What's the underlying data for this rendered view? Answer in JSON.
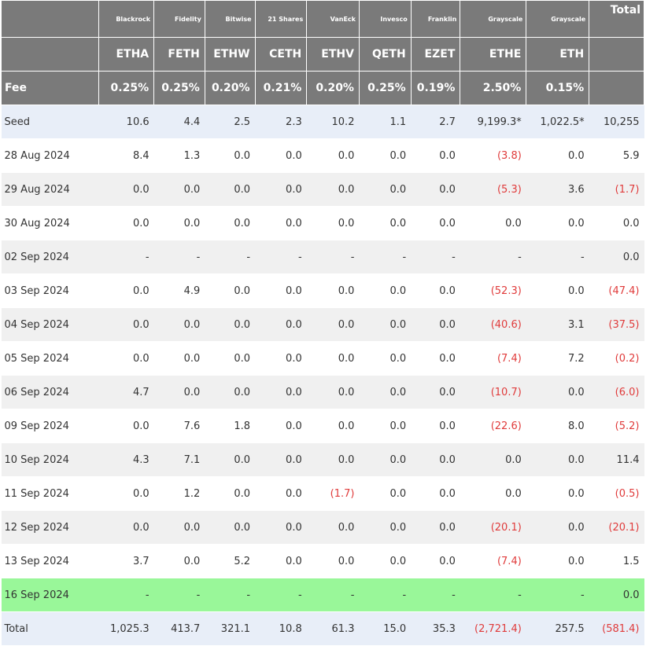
{
  "chart_data": {
    "type": "table",
    "headers": {
      "issuers": [
        "Blackrock",
        "Fidelity",
        "Bitwise",
        "21 Shares",
        "VanEck",
        "Invesco",
        "Franklin",
        "Grayscale",
        "Grayscale"
      ],
      "total_label": "Total",
      "tickers": [
        "ETHA",
        "FETH",
        "ETHW",
        "CETH",
        "ETHV",
        "QETH",
        "EZET",
        "ETHE",
        "ETH"
      ],
      "fee_label": "Fee",
      "fees": [
        "0.25%",
        "0.25%",
        "0.20%",
        "0.21%",
        "0.20%",
        "0.25%",
        "0.19%",
        "2.50%",
        "0.15%"
      ]
    },
    "rows": [
      {
        "label": "Seed",
        "style": "seed",
        "cells": [
          "10.6",
          "4.4",
          "2.5",
          "2.3",
          "10.2",
          "1.1",
          "2.7",
          "9,199.3*",
          "1,022.5*",
          "10,255"
        ]
      },
      {
        "label": "28 Aug 2024",
        "style": "r-odd",
        "cells": [
          "8.4",
          "1.3",
          "0.0",
          "0.0",
          "0.0",
          "0.0",
          "0.0",
          "(3.8)",
          "0.0",
          "5.9"
        ]
      },
      {
        "label": "29 Aug 2024",
        "style": "r-even",
        "cells": [
          "0.0",
          "0.0",
          "0.0",
          "0.0",
          "0.0",
          "0.0",
          "0.0",
          "(5.3)",
          "3.6",
          "(1.7)"
        ]
      },
      {
        "label": "30 Aug 2024",
        "style": "r-odd",
        "cells": [
          "0.0",
          "0.0",
          "0.0",
          "0.0",
          "0.0",
          "0.0",
          "0.0",
          "0.0",
          "0.0",
          "0.0"
        ]
      },
      {
        "label": "02 Sep 2024",
        "style": "r-even",
        "cells": [
          "-",
          "-",
          "-",
          "-",
          "-",
          "-",
          "-",
          "-",
          "-",
          "0.0"
        ]
      },
      {
        "label": "03 Sep 2024",
        "style": "r-odd",
        "cells": [
          "0.0",
          "4.9",
          "0.0",
          "0.0",
          "0.0",
          "0.0",
          "0.0",
          "(52.3)",
          "0.0",
          "(47.4)"
        ]
      },
      {
        "label": "04 Sep 2024",
        "style": "r-even",
        "cells": [
          "0.0",
          "0.0",
          "0.0",
          "0.0",
          "0.0",
          "0.0",
          "0.0",
          "(40.6)",
          "3.1",
          "(37.5)"
        ]
      },
      {
        "label": "05 Sep 2024",
        "style": "r-odd",
        "cells": [
          "0.0",
          "0.0",
          "0.0",
          "0.0",
          "0.0",
          "0.0",
          "0.0",
          "(7.4)",
          "7.2",
          "(0.2)"
        ]
      },
      {
        "label": "06 Sep 2024",
        "style": "r-even",
        "cells": [
          "4.7",
          "0.0",
          "0.0",
          "0.0",
          "0.0",
          "0.0",
          "0.0",
          "(10.7)",
          "0.0",
          "(6.0)"
        ]
      },
      {
        "label": "09 Sep 2024",
        "style": "r-odd",
        "cells": [
          "0.0",
          "7.6",
          "1.8",
          "0.0",
          "0.0",
          "0.0",
          "0.0",
          "(22.6)",
          "8.0",
          "(5.2)"
        ]
      },
      {
        "label": "10 Sep 2024",
        "style": "r-even",
        "cells": [
          "4.3",
          "7.1",
          "0.0",
          "0.0",
          "0.0",
          "0.0",
          "0.0",
          "0.0",
          "0.0",
          "11.4"
        ]
      },
      {
        "label": "11 Sep 2024",
        "style": "r-odd",
        "cells": [
          "0.0",
          "1.2",
          "0.0",
          "0.0",
          "(1.7)",
          "0.0",
          "0.0",
          "0.0",
          "0.0",
          "(0.5)"
        ]
      },
      {
        "label": "12 Sep 2024",
        "style": "r-even",
        "cells": [
          "0.0",
          "0.0",
          "0.0",
          "0.0",
          "0.0",
          "0.0",
          "0.0",
          "(20.1)",
          "0.0",
          "(20.1)"
        ]
      },
      {
        "label": "13 Sep 2024",
        "style": "r-odd",
        "cells": [
          "3.7",
          "0.0",
          "5.2",
          "0.0",
          "0.0",
          "0.0",
          "0.0",
          "(7.4)",
          "0.0",
          "1.5"
        ]
      },
      {
        "label": "16 Sep 2024",
        "style": "highlight",
        "cells": [
          "-",
          "-",
          "-",
          "-",
          "-",
          "-",
          "-",
          "-",
          "-",
          "0.0"
        ]
      },
      {
        "label": "Total",
        "style": "totalrow",
        "cells": [
          "1,025.3",
          "413.7",
          "321.1",
          "10.8",
          "61.3",
          "15.0",
          "35.3",
          "(2,721.4)",
          "257.5",
          "(581.4)"
        ]
      }
    ],
    "colors": {
      "header_bg": "#7a7a7a",
      "negative": "#e03b3b",
      "seed_row": "#e8eef8",
      "highlight_row": "#99f799",
      "stripe_row": "#f0f0f0"
    }
  }
}
